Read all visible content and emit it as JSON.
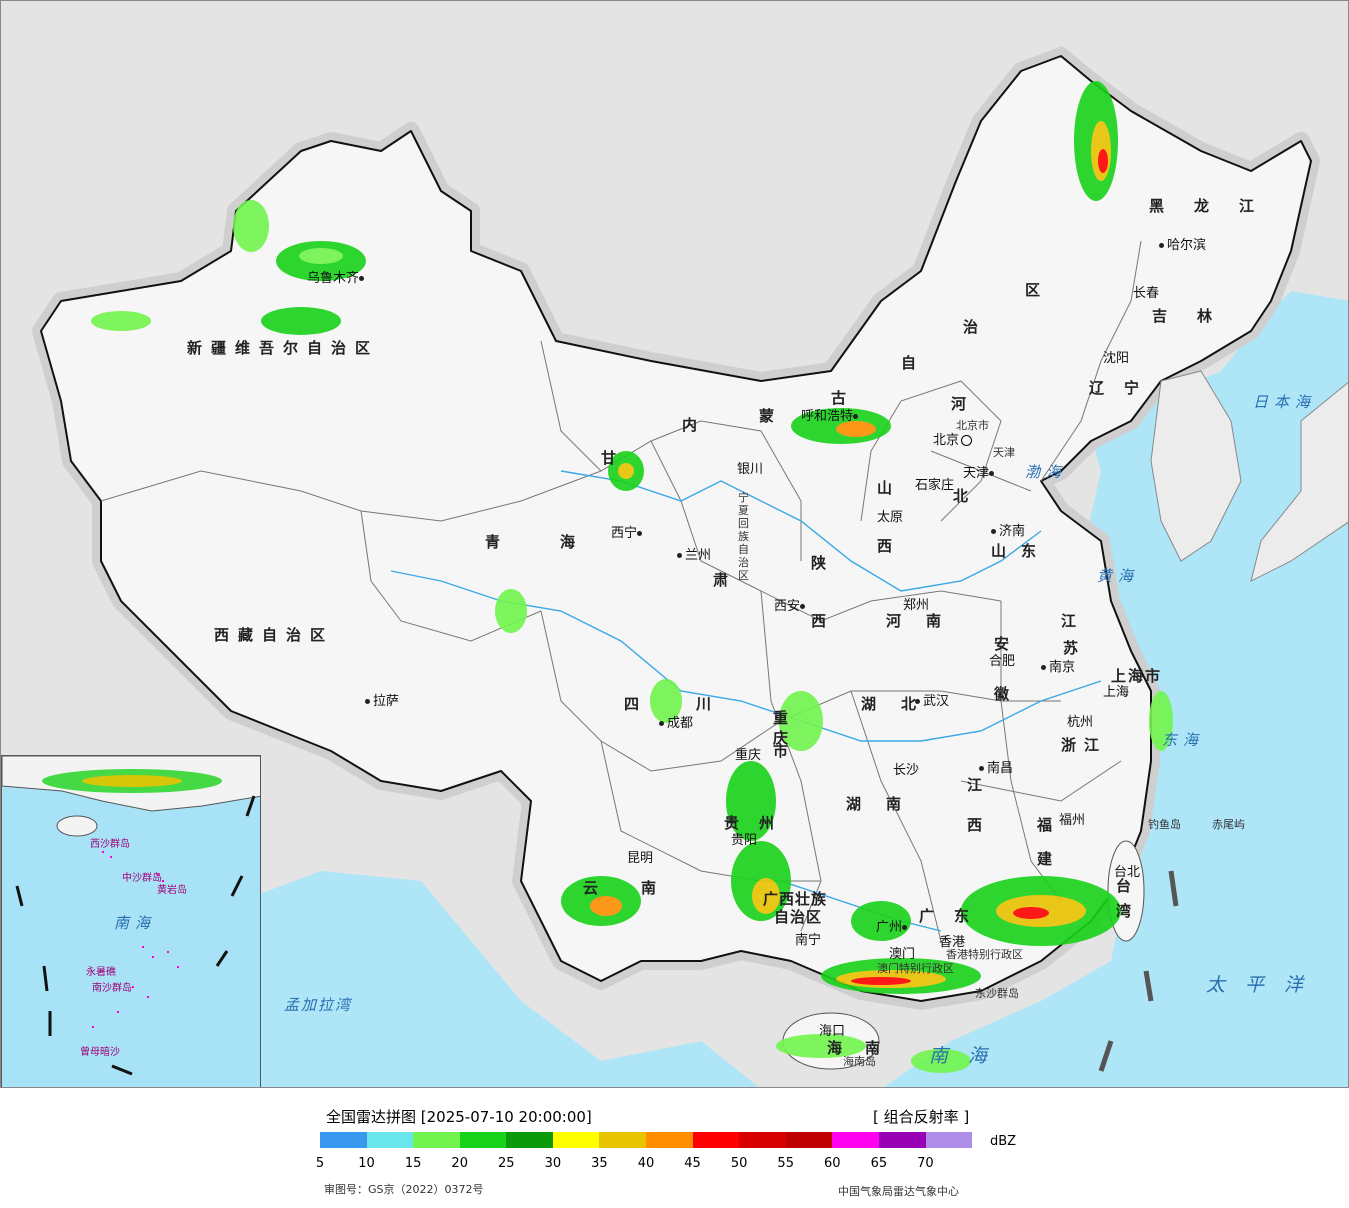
{
  "legend": {
    "title": "全国雷达拼图 [2025-07-10 20:00:00]",
    "product": "[ 组合反射率 ]",
    "unit": "dBZ",
    "ticks": [
      "5",
      "10",
      "15",
      "20",
      "25",
      "30",
      "35",
      "40",
      "45",
      "50",
      "55",
      "60",
      "65",
      "70"
    ],
    "colors": [
      "#3a98ef",
      "#68e6ea",
      "#71f44d",
      "#19d21a",
      "#0b9a09",
      "#ffff00",
      "#e7c300",
      "#ff8e00",
      "#ff0000",
      "#d90000",
      "#bf0000",
      "#ff00f0",
      "#9800b4",
      "#ad8de8"
    ],
    "approval": "审图号：GS京（2022）0372号",
    "agency": "中国气象局雷达气象中心"
  },
  "provinces": {
    "xinjiang": "新疆维吾尔自治区",
    "xizang": "西藏自治区",
    "qinghai": "青海",
    "gansu": "甘",
    "neimenggu_nei": "内",
    "neimenggu_meng": "蒙",
    "neimenggu_gu": "古",
    "neimenggu_zi": "自",
    "neimenggu_zhi": "治",
    "neimenggu_qu": "区",
    "heilongjiang": "黑龙江",
    "jilin": "吉林",
    "liaoning": "辽宁",
    "hebei_he": "河",
    "hebei_bei": "北",
    "shanxi_shan": "山",
    "shanxi_xi": "西",
    "shaanxi_shan": "陕",
    "shaanxi_xi": "西",
    "ningxia": "宁夏回族自治区",
    "shandong": "山东",
    "henan": "河南",
    "jiangsu_jiang": "江",
    "jiangsu_su": "苏",
    "anhui_an": "安",
    "anhui_hui": "徽",
    "shanghai": "上海市",
    "zhejiang": "浙江",
    "hubei": "湖北",
    "hunan": "湖南",
    "jiangxi_jiang": "江",
    "jiangxi_xi": "西",
    "fujian_fu": "福",
    "fujian_jian": "建",
    "sichuan_si": "四",
    "sichuan_chuan": "川",
    "chongqing_chong": "重",
    "chongqing_qing": "庆",
    "chongqing_shi": "市",
    "gansu_su": "肃",
    "guizhou": "贵州",
    "yunnan_yun": "云",
    "yunnan_nan": "南",
    "guangxi_1": "广西壮族",
    "guangxi_2": "自治区",
    "guangdong": "广东",
    "hainan_hai": "海",
    "hainan_nan": "南",
    "hainan_island": "海南岛",
    "taiwan_tai": "台",
    "taiwan_wan": "湾",
    "hongkong": "香港特别行政区",
    "macau": "澳门特别行政区",
    "beijing": "北京市",
    "tianjin": "天津"
  },
  "cities": [
    {
      "name": "乌鲁木齐"
    },
    {
      "name": "拉萨"
    },
    {
      "name": "西宁"
    },
    {
      "name": "兰州"
    },
    {
      "name": "银川"
    },
    {
      "name": "呼和浩特"
    },
    {
      "name": "北京"
    },
    {
      "name": "天津"
    },
    {
      "name": "石家庄"
    },
    {
      "name": "太原"
    },
    {
      "name": "济南"
    },
    {
      "name": "郑州"
    },
    {
      "name": "西安"
    },
    {
      "name": "合肥"
    },
    {
      "name": "南京"
    },
    {
      "name": "上海"
    },
    {
      "name": "杭州"
    },
    {
      "name": "武汉"
    },
    {
      "name": "成都"
    },
    {
      "name": "重庆"
    },
    {
      "name": "长沙"
    },
    {
      "name": "南昌"
    },
    {
      "name": "贵阳"
    },
    {
      "name": "昆明"
    },
    {
      "name": "福州"
    },
    {
      "name": "南宁"
    },
    {
      "name": "广州"
    },
    {
      "name": "香港"
    },
    {
      "name": "澳门"
    },
    {
      "name": "海口"
    },
    {
      "name": "台北"
    },
    {
      "name": "哈尔滨"
    },
    {
      "name": "长春"
    },
    {
      "name": "沈阳"
    }
  ],
  "seas": {
    "bohai": "渤海",
    "huanghai": "黄海",
    "donghai": "东海",
    "nanhai": "南海",
    "riben": "日本海",
    "taiping": "太平洋",
    "mengjiala": "孟加拉湾"
  },
  "islands": {
    "diaoyu": "钓鱼岛",
    "chiwei": "赤尾屿",
    "dongsha": "东沙群岛"
  },
  "inset": {
    "nanhai": "南海",
    "xisha": "西沙群岛",
    "zhongsha": "中沙群岛",
    "huangyan": "黄岩岛",
    "nansha": "南沙群岛",
    "yongshu": "永暑礁",
    "zengmu": "曾母暗沙"
  }
}
